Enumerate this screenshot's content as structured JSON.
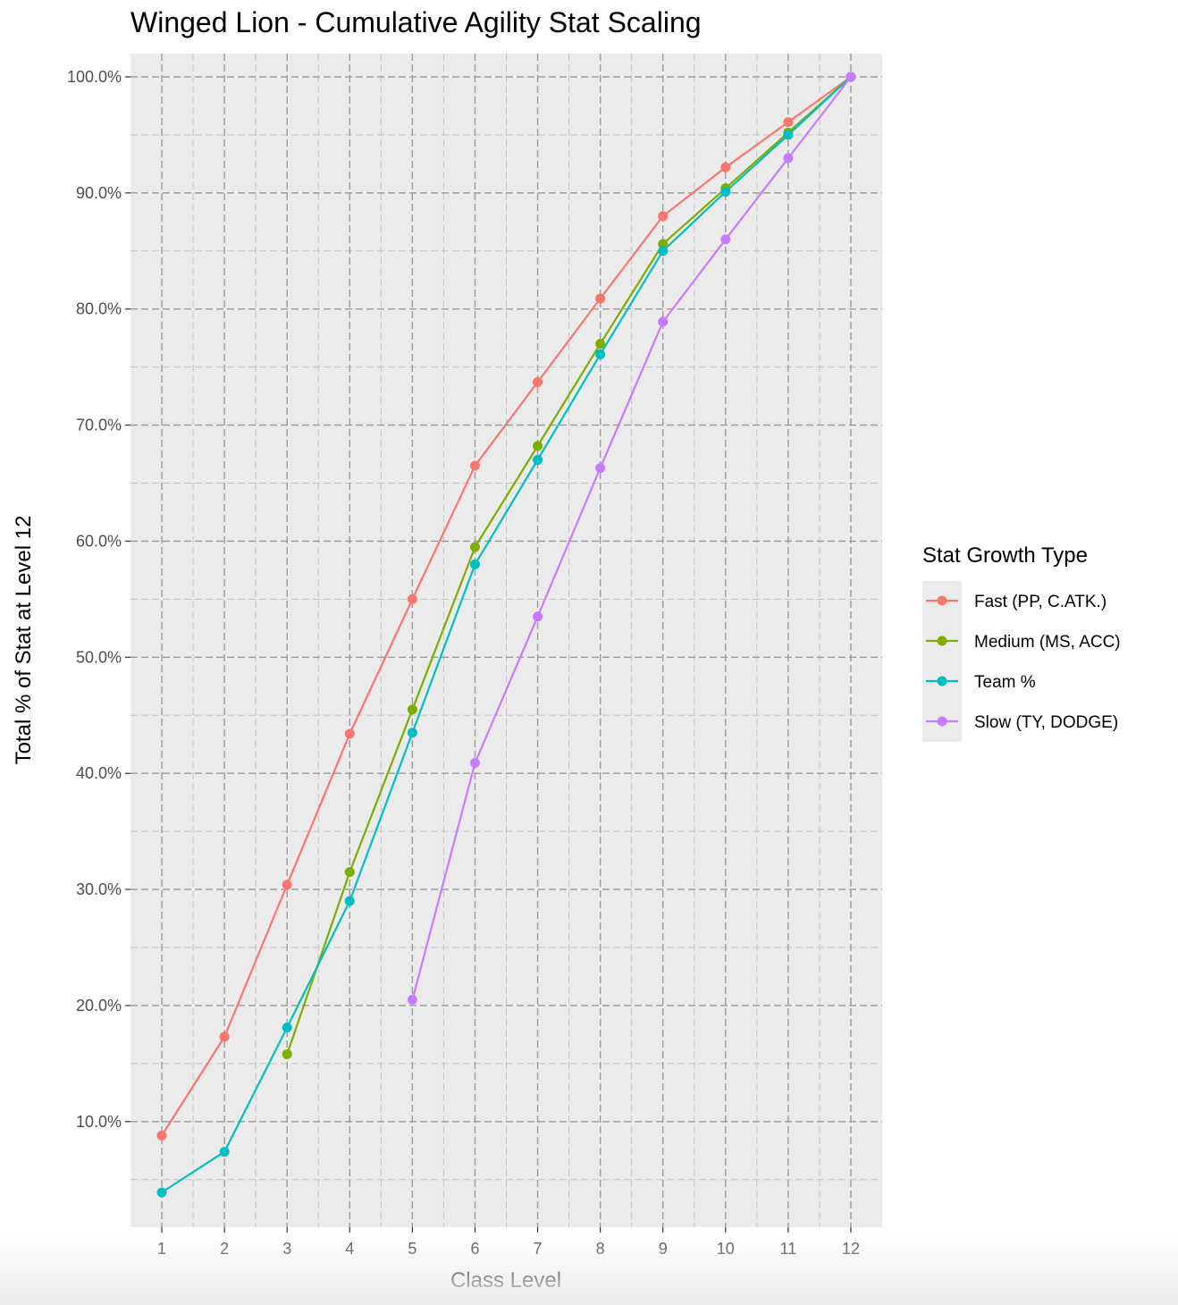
{
  "chart_data": {
    "type": "line",
    "title": "Winged Lion - Cumulative Agility Stat Scaling",
    "xlabel": "Class Level",
    "ylabel": "Total % of Stat at Level 12",
    "x": [
      1,
      2,
      3,
      4,
      5,
      6,
      7,
      8,
      9,
      10,
      11,
      12
    ],
    "x_tick_labels": [
      "1",
      "2",
      "3",
      "4",
      "5",
      "6",
      "7",
      "8",
      "9",
      "10",
      "11",
      "12"
    ],
    "xlim": [
      0.5,
      12.5
    ],
    "ylim": [
      0.9,
      102.0
    ],
    "y_ticks": [
      10,
      20,
      30,
      40,
      50,
      60,
      70,
      80,
      90,
      100
    ],
    "y_tick_labels": [
      "10.0%",
      "20.0%",
      "30.0%",
      "40.0%",
      "50.0%",
      "60.0%",
      "70.0%",
      "80.0%",
      "90.0%",
      "100.0%"
    ],
    "grid": true,
    "grid_style": "dashed",
    "legend_title": "Stat Growth Type",
    "legend_position": "right",
    "series": [
      {
        "name": "Fast (PP, C.ATK.)",
        "color": "#F8766D",
        "x": [
          1,
          2,
          3,
          4,
          5,
          6,
          7,
          8,
          9,
          10,
          11,
          12
        ],
        "values": [
          8.8,
          17.3,
          30.4,
          43.4,
          55.0,
          66.5,
          73.7,
          80.9,
          88.0,
          92.2,
          96.1,
          100.0
        ]
      },
      {
        "name": "Medium (MS, ACC)",
        "color": "#7CAE00",
        "x": [
          3,
          4,
          5,
          6,
          7,
          8,
          9,
          10,
          11,
          12
        ],
        "values": [
          15.8,
          31.5,
          45.5,
          59.5,
          68.2,
          77.0,
          85.6,
          90.4,
          95.2,
          100.0
        ]
      },
      {
        "name": "Team %",
        "color": "#00BFC4",
        "x": [
          1,
          2,
          3,
          4,
          5,
          6,
          7,
          8,
          9,
          10,
          11,
          12
        ],
        "values": [
          3.9,
          7.4,
          18.1,
          29.0,
          43.5,
          58.0,
          67.0,
          76.1,
          85.0,
          90.1,
          95.0,
          100.0
        ]
      },
      {
        "name": "Slow (TY, DODGE)",
        "color": "#C77CFF",
        "x": [
          5,
          6,
          7,
          8,
          9,
          10,
          11,
          12
        ],
        "values": [
          20.5,
          40.9,
          53.5,
          66.3,
          78.9,
          86.0,
          93.0,
          100.0
        ]
      }
    ]
  }
}
